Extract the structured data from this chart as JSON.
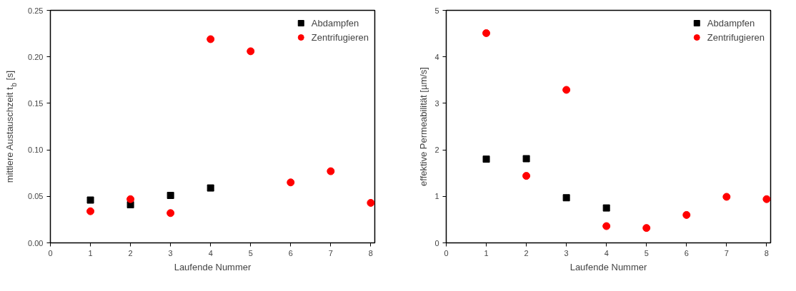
{
  "chart_data": [
    {
      "type": "scatter",
      "xlabel": "Laufende Nummer",
      "ylabel": "mittlere Austauschzeit t$_{b}$ [s]",
      "x": [
        1,
        2,
        3,
        4,
        5,
        6,
        7,
        8
      ],
      "series": [
        {
          "name": "Abdampfen",
          "color": "#000000",
          "marker": "square",
          "values": [
            0.046,
            0.041,
            0.051,
            0.059,
            null,
            null,
            null,
            null
          ]
        },
        {
          "name": "Zentrifugieren",
          "color": "#ff0000",
          "marker": "circle",
          "values": [
            0.034,
            0.047,
            0.032,
            0.219,
            0.206,
            0.065,
            0.077,
            0.043
          ]
        }
      ],
      "xlim": [
        0,
        8.1
      ],
      "xticks": [
        0,
        1,
        2,
        3,
        4,
        5,
        6,
        7,
        8
      ],
      "ylim": [
        0,
        0.25
      ],
      "yticks": [
        {
          "value": 0,
          "label": "0.00"
        },
        {
          "value": 0.05,
          "label": "0.05"
        },
        {
          "value": 0.1,
          "label": "0.10"
        },
        {
          "value": 0.15,
          "label": "0.15"
        },
        {
          "value": 0.2,
          "label": "0.20"
        },
        {
          "value": 0.25,
          "label": "0.25"
        }
      ],
      "grid": false,
      "legend": "top right"
    },
    {
      "type": "scatter",
      "xlabel": "Laufende Nummer",
      "ylabel": "effektive Permeabilität [µm/s]",
      "x": [
        1,
        2,
        3,
        4,
        5,
        6,
        7,
        8
      ],
      "series": [
        {
          "name": "Abdampfen",
          "color": "#000000",
          "marker": "square",
          "values": [
            1.8,
            1.81,
            0.97,
            0.75,
            null,
            null,
            null,
            null
          ]
        },
        {
          "name": "Zentrifugieren",
          "color": "#ff0000",
          "marker": "circle",
          "values": [
            4.51,
            1.44,
            3.29,
            0.36,
            0.32,
            0.6,
            0.99,
            0.94
          ]
        }
      ],
      "xlim": [
        0,
        8.1
      ],
      "xticks": [
        0,
        1,
        2,
        3,
        4,
        5,
        6,
        7,
        8
      ],
      "ylim": [
        0,
        5
      ],
      "yticks": [
        0,
        1,
        2,
        3,
        4,
        5
      ],
      "grid": false,
      "legend": "top right"
    }
  ]
}
